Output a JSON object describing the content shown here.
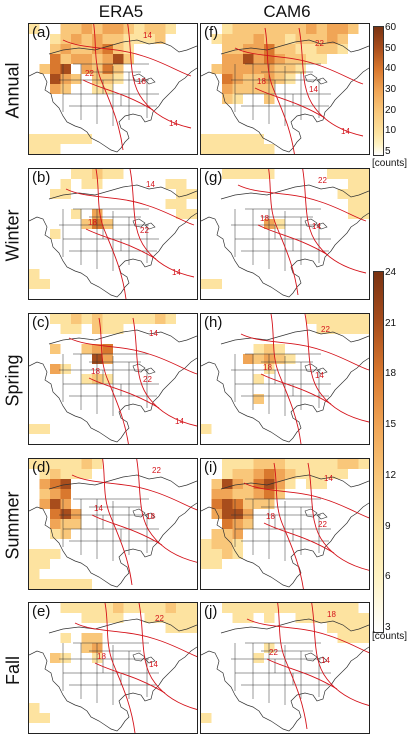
{
  "columns": [
    "ERA5",
    "CAM6"
  ],
  "rows": [
    "Annual",
    "Winter",
    "Spring",
    "Summer",
    "Fall"
  ],
  "panels": [
    {
      "label": "(a)",
      "col": 0,
      "row": 0,
      "contours": [
        "14",
        "22",
        "18",
        "14"
      ]
    },
    {
      "label": "(b)",
      "col": 0,
      "row": 1,
      "contours": [
        "14",
        "18",
        "22",
        "14"
      ]
    },
    {
      "label": "(c)",
      "col": 0,
      "row": 2,
      "contours": [
        "14",
        "18",
        "22",
        "14"
      ]
    },
    {
      "label": "(d)",
      "col": 0,
      "row": 3,
      "contours": [
        "22",
        "14",
        "18"
      ]
    },
    {
      "label": "(e)",
      "col": 0,
      "row": 4,
      "contours": [
        "22",
        "18",
        "14"
      ]
    },
    {
      "label": "(f)",
      "col": 1,
      "row": 0,
      "contours": [
        "22",
        "18",
        "14",
        "14"
      ]
    },
    {
      "label": "(g)",
      "col": 1,
      "row": 1,
      "contours": [
        "22",
        "18",
        "14"
      ]
    },
    {
      "label": "(h)",
      "col": 1,
      "row": 2,
      "contours": [
        "22",
        "18",
        "14"
      ]
    },
    {
      "label": "(i)",
      "col": 1,
      "row": 3,
      "contours": [
        "14",
        "18",
        "22"
      ]
    },
    {
      "label": "(j)",
      "col": 1,
      "row": 4,
      "contours": [
        "18",
        "22",
        "14"
      ]
    }
  ],
  "colorbar_annual": {
    "ticks": [
      "60",
      "50",
      "40",
      "30",
      "20",
      "10",
      "5"
    ],
    "units": "[counts]",
    "values": [
      60,
      50,
      40,
      30,
      20,
      10,
      5
    ]
  },
  "colorbar_seasonal": {
    "ticks": [
      "24",
      "21",
      "18",
      "15",
      "12",
      "9",
      "6",
      "3"
    ],
    "units": "[counts]",
    "values": [
      24,
      21,
      18,
      15,
      12,
      9,
      6,
      3
    ]
  },
  "colors": {
    "low": "#fff3c4",
    "mid1": "#fde3a0",
    "mid2": "#f9c77a",
    "mid3": "#f0a556",
    "high1": "#d9782e",
    "high2": "#a84d1c",
    "max": "#7a3312",
    "contour": "#d4121a",
    "land": "#333333"
  }
}
